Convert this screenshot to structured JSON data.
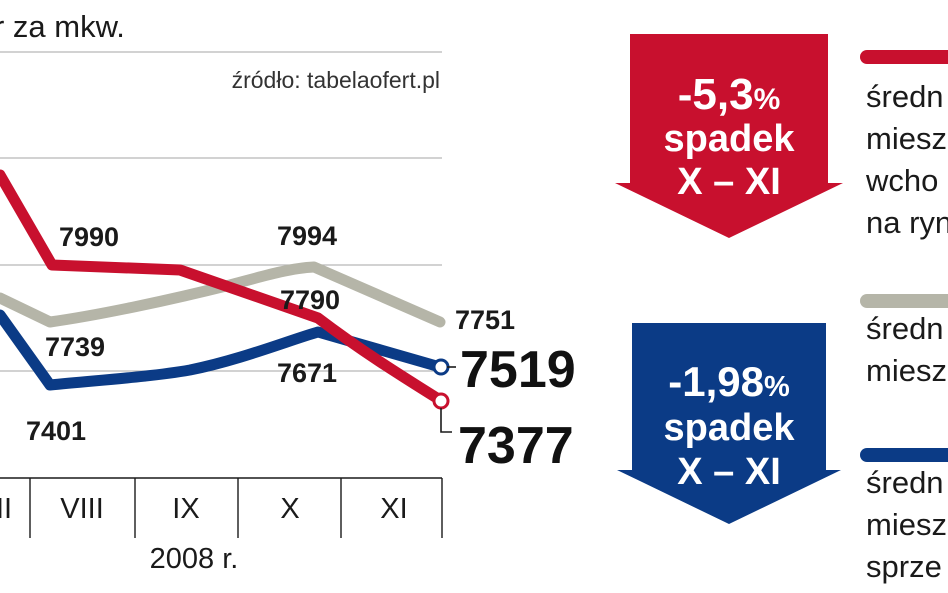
{
  "header": {
    "title_fragment": "r za mkw.",
    "source": "źródło: tabelaofert.pl"
  },
  "chart_data": {
    "type": "line",
    "categories": [
      "II",
      "VIII",
      "IX",
      "X",
      "XI"
    ],
    "x_group_label": "2008 r.",
    "series": [
      {
        "color": "#c8102e",
        "values": [
          null,
          7990,
          null,
          7790,
          7377
        ]
      },
      {
        "color": "#b5b5a8",
        "values": [
          null,
          7739,
          null,
          7994,
          7751
        ]
      },
      {
        "color": "#0b3b86",
        "values": [
          null,
          7401,
          null,
          7671,
          7519
        ]
      }
    ],
    "labels": {
      "red_aug": "7990",
      "red_oct": "7790",
      "red_nov": "7377",
      "grey_aug": "7739",
      "grey_oct": "7994",
      "grey_nov": "7751",
      "blue_aug": "7401",
      "blue_oct": "7671",
      "blue_nov": "7519"
    },
    "grid": true
  },
  "badges": [
    {
      "color": "#c8102e",
      "pct": "-5,3",
      "pct_sign": "%",
      "word": "spadek",
      "range": "X – XI"
    },
    {
      "color": "#0b3b86",
      "pct": "-1,98",
      "pct_sign": "%",
      "word": "spadek",
      "range": "X – XI"
    }
  ],
  "legend": [
    {
      "color": "#c8102e",
      "lines": [
        "średn",
        "miesz",
        "wcho",
        "na ryn"
      ]
    },
    {
      "color": "#b5b5a8",
      "lines": [
        "średn",
        "miesz"
      ]
    },
    {
      "color": "#0b3b86",
      "lines": [
        "średn",
        "miesz",
        "sprze"
      ]
    }
  ]
}
